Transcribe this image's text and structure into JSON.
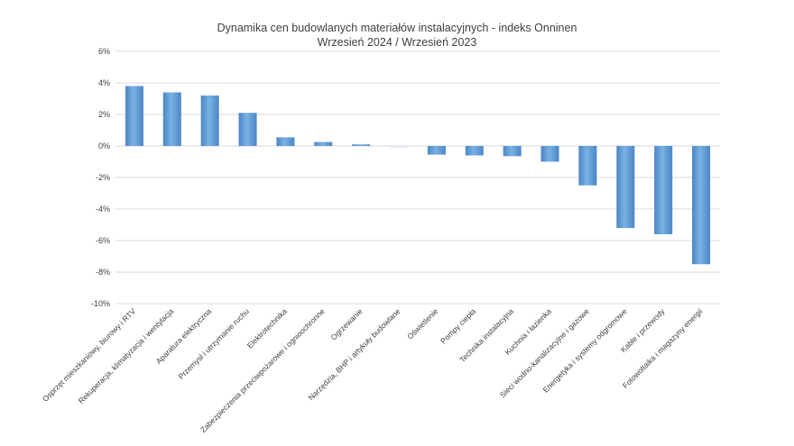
{
  "chart_data": {
    "type": "bar",
    "title": "Dynamika cen budowlanych materiałów instalacyjnych - indeks Onninen",
    "subtitle": "Wrzesień 2024 / Wrzesień 2023",
    "xlabel": "",
    "ylabel": "",
    "ylim": [
      -10,
      6
    ],
    "yticks": [
      "6%",
      "4%",
      "2%",
      "0%",
      "-2%",
      "-4%",
      "-6%",
      "-8%",
      "-10%"
    ],
    "ytick_values": [
      6,
      4,
      2,
      0,
      -2,
      -4,
      -6,
      -8,
      -10
    ],
    "grid": true,
    "legend": "none",
    "categories": [
      "Osprzęt mieszkaniowy, biurowy i RTV",
      "Rekuperacja, klimatyzacja i wentylacja",
      "Aparatura elektryczna",
      "Przemysł i utrzymanie ruchu",
      "Elektrotechnika",
      "Zabezpieczenia przeciwpożarowe i ognioochronne",
      "Ogrzewanie",
      "Narzędzia, BHP i artykuły budowlane",
      "Oświetlenie",
      "Pompy ciepła",
      "Technika instalacyjna",
      "Kuchnia i łazienka",
      "Sieci wodno-kanalizacyjne i gazowe",
      "Energetyka i systemy odgromowe",
      "Kable i przewody",
      "Fotowoltaika i magazyny energii"
    ],
    "values": [
      3.8,
      3.4,
      3.2,
      2.1,
      0.55,
      0.25,
      0.1,
      -0.1,
      -0.55,
      -0.6,
      -0.65,
      -1.0,
      -2.5,
      -5.2,
      -5.6,
      -7.5
    ],
    "bar_color": "#5B9BD5"
  }
}
